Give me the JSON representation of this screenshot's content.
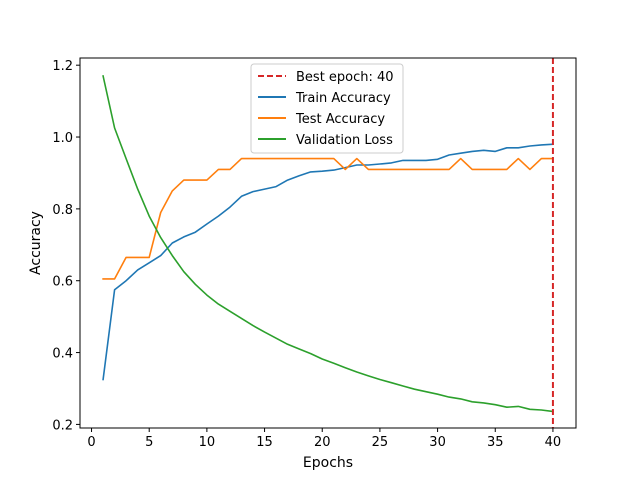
{
  "chart_data": {
    "type": "line",
    "title": "",
    "xlabel": "Epochs",
    "ylabel": "Accuracy",
    "xlim": [
      -1,
      42
    ],
    "ylim": [
      0.19,
      1.22
    ],
    "x_ticks": [
      0,
      5,
      10,
      15,
      20,
      25,
      30,
      35,
      40
    ],
    "y_ticks": [
      0.2,
      0.4,
      0.6,
      0.8,
      1.0,
      1.2
    ],
    "y_tick_labels": [
      "0.2",
      "0.4",
      "0.6",
      "0.8",
      "1.0",
      "1.2"
    ],
    "grid": false,
    "legend_position": "top-center",
    "x": [
      1,
      2,
      3,
      4,
      5,
      6,
      7,
      8,
      9,
      10,
      11,
      12,
      13,
      14,
      15,
      16,
      17,
      18,
      19,
      20,
      21,
      22,
      23,
      24,
      25,
      26,
      27,
      28,
      29,
      30,
      31,
      32,
      33,
      34,
      35,
      36,
      37,
      38,
      39,
      40
    ],
    "series": [
      {
        "name": "Train Accuracy",
        "color": "#1f77b4",
        "values": [
          0.325,
          0.575,
          0.6,
          0.63,
          0.65,
          0.67,
          0.705,
          0.722,
          0.735,
          0.758,
          0.78,
          0.805,
          0.835,
          0.848,
          0.855,
          0.862,
          0.88,
          0.892,
          0.903,
          0.905,
          0.908,
          0.915,
          0.922,
          0.922,
          0.925,
          0.928,
          0.935,
          0.935,
          0.935,
          0.938,
          0.95,
          0.955,
          0.96,
          0.963,
          0.96,
          0.97,
          0.97,
          0.975,
          0.978,
          0.98
        ]
      },
      {
        "name": "Test Accuracy",
        "color": "#ff7f0e",
        "values": [
          0.605,
          0.605,
          0.665,
          0.665,
          0.665,
          0.79,
          0.85,
          0.88,
          0.88,
          0.88,
          0.91,
          0.91,
          0.94,
          0.94,
          0.94,
          0.94,
          0.94,
          0.94,
          0.94,
          0.94,
          0.94,
          0.91,
          0.94,
          0.91,
          0.91,
          0.91,
          0.91,
          0.91,
          0.91,
          0.91,
          0.91,
          0.94,
          0.91,
          0.91,
          0.91,
          0.91,
          0.94,
          0.91,
          0.94,
          0.94
        ]
      },
      {
        "name": "Validation Loss",
        "color": "#2ca02c",
        "values": [
          1.17,
          1.025,
          0.94,
          0.855,
          0.78,
          0.72,
          0.67,
          0.625,
          0.59,
          0.56,
          0.535,
          0.515,
          0.495,
          0.475,
          0.457,
          0.44,
          0.423,
          0.41,
          0.397,
          0.382,
          0.37,
          0.358,
          0.346,
          0.335,
          0.325,
          0.316,
          0.307,
          0.298,
          0.291,
          0.284,
          0.276,
          0.271,
          0.263,
          0.26,
          0.255,
          0.248,
          0.25,
          0.242,
          0.24,
          0.236
        ]
      }
    ],
    "best_epoch": {
      "label": "Best epoch: 40",
      "x": 40,
      "color": "#d62728",
      "style": "dashed"
    }
  }
}
